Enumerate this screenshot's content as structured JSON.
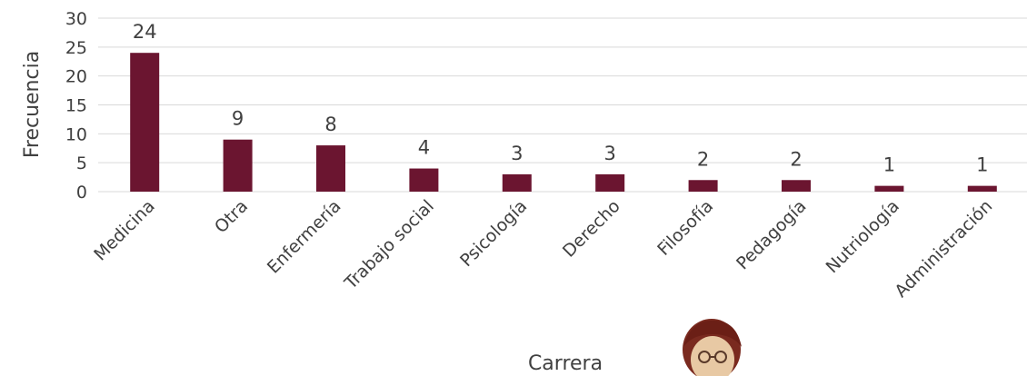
{
  "chart_data": {
    "type": "bar",
    "categories": [
      "Medicina",
      "Otra",
      "Enfermería",
      "Trabajo social",
      "Psicología",
      "Derecho",
      "Filosofía",
      "Pedagogía",
      "Nutriología",
      "Administración"
    ],
    "values": [
      24,
      9,
      8,
      4,
      3,
      3,
      2,
      2,
      1,
      1
    ],
    "title": "",
    "xlabel": "Carrera",
    "ylabel": "Frecuencia",
    "ylim": [
      0,
      30
    ],
    "yticks": [
      0,
      5,
      10,
      15,
      20,
      25,
      30
    ],
    "grid": true,
    "legend": "none",
    "bar_color": "#6b1530"
  }
}
